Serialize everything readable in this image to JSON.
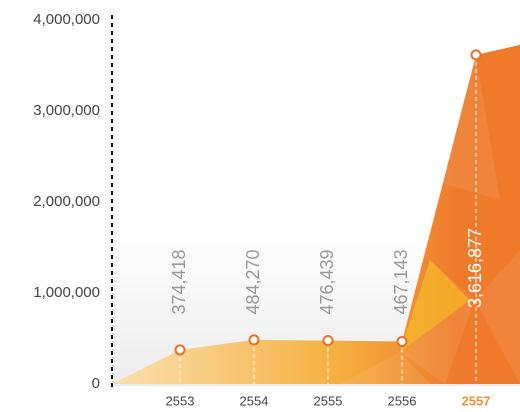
{
  "chart_data": {
    "type": "area",
    "categories": [
      "2553",
      "2554",
      "2555",
      "2556",
      "2557"
    ],
    "values": [
      374418,
      484270,
      476439,
      467143,
      3616877
    ],
    "value_labels": [
      "374,418",
      "484,270",
      "476,439",
      "467,143",
      "3,616,877"
    ],
    "ylim": [
      0,
      4000000
    ],
    "yticks": [
      {
        "value": 0,
        "label": "0"
      },
      {
        "value": 1000000,
        "label": "1,000,000"
      },
      {
        "value": 2000000,
        "label": "2,000,000"
      },
      {
        "value": 3000000,
        "label": "3,000,000"
      },
      {
        "value": 4000000,
        "label": "4,000,000"
      }
    ],
    "colors": [
      "#fbe0b0",
      "#f5b040",
      "#ee7a2a"
    ],
    "highlight_index": 4,
    "highlight_color": "#f0913a"
  }
}
